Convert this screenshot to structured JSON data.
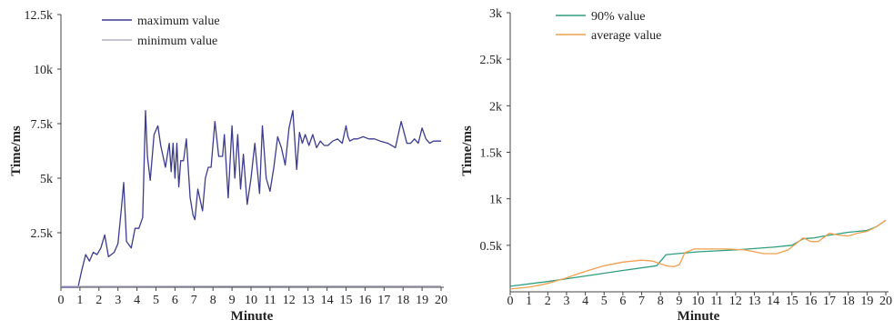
{
  "chart_data": [
    {
      "type": "line",
      "title": "",
      "xlabel": "Minute",
      "ylabel": "Time/ms",
      "xlim": [
        0,
        20
      ],
      "ylim": [
        0,
        12500
      ],
      "x_ticks": [
        "0",
        "1",
        "2",
        "3",
        "4",
        "5",
        "6",
        "7",
        "8",
        "9",
        "10",
        "11",
        "12",
        "13",
        "14",
        "15",
        "16",
        "17",
        "18",
        "19",
        "20"
      ],
      "y_ticks": [
        {
          "value": 2500,
          "label": "2.5k"
        },
        {
          "value": 5000,
          "label": "5k"
        },
        {
          "value": 7500,
          "label": "7.5k"
        },
        {
          "value": 10000,
          "label": "10k"
        },
        {
          "value": 12500,
          "label": "12.5k"
        }
      ],
      "grid": false,
      "legend_position": "top-center",
      "series": [
        {
          "name": "maximum value",
          "color": "#3b3b8f",
          "x": [
            0,
            0.9,
            1.0,
            1.1,
            1.3,
            1.5,
            1.7,
            1.9,
            2.1,
            2.3,
            2.5,
            2.8,
            3.0,
            3.2,
            3.3,
            3.45,
            3.7,
            3.9,
            4.1,
            4.3,
            4.45,
            4.55,
            4.7,
            4.9,
            5.1,
            5.25,
            5.5,
            5.7,
            5.8,
            5.9,
            6.0,
            6.1,
            6.2,
            6.3,
            6.45,
            6.6,
            6.8,
            6.95,
            7.05,
            7.2,
            7.45,
            7.6,
            7.75,
            7.9,
            8.1,
            8.3,
            8.5,
            8.6,
            8.8,
            9.0,
            9.15,
            9.3,
            9.45,
            9.6,
            9.8,
            10.0,
            10.2,
            10.45,
            10.6,
            10.8,
            11.0,
            11.2,
            11.4,
            11.6,
            11.8,
            12.0,
            12.2,
            12.4,
            12.55,
            12.7,
            12.85,
            13.05,
            13.25,
            13.45,
            13.65,
            13.85,
            14.05,
            14.3,
            14.55,
            14.8,
            15.0,
            15.1,
            15.2,
            15.4,
            15.6,
            15.9,
            16.2,
            16.5,
            16.8,
            17.2,
            17.6,
            17.9,
            18.2,
            18.4,
            18.6,
            18.8,
            19.0,
            19.2,
            19.4,
            19.6,
            19.8,
            20.0
          ],
          "y": [
            0,
            0,
            400,
            800,
            1500,
            1200,
            1600,
            1500,
            1800,
            2400,
            1400,
            1600,
            2000,
            3800,
            4800,
            2100,
            1800,
            2700,
            2700,
            3200,
            8100,
            6000,
            4900,
            7000,
            7400,
            6500,
            5500,
            6600,
            5300,
            6600,
            5000,
            6600,
            4600,
            5800,
            5800,
            6800,
            4100,
            3300,
            3100,
            4500,
            3500,
            5000,
            5500,
            5500,
            7600,
            6000,
            6000,
            7000,
            4100,
            7400,
            5000,
            7000,
            4500,
            6100,
            3800,
            5000,
            6600,
            4300,
            7400,
            5000,
            4400,
            5500,
            6900,
            6400,
            5600,
            7300,
            8100,
            5400,
            7100,
            6600,
            7000,
            6500,
            7000,
            6400,
            6700,
            6500,
            6500,
            6700,
            6800,
            6600,
            7400,
            6900,
            6700,
            6800,
            6800,
            6900,
            6800,
            6800,
            6700,
            6600,
            6400,
            7600,
            6600,
            6600,
            6800,
            6600,
            7300,
            6800,
            6600,
            6700,
            6700,
            6700
          ]
        },
        {
          "name": "minimum value",
          "color": "#b0b0c8",
          "x": [
            0,
            20
          ],
          "y": [
            40,
            60
          ]
        }
      ]
    },
    {
      "type": "line",
      "title": "",
      "xlabel": "Minute",
      "ylabel": "Time/ms",
      "xlim": [
        0,
        20
      ],
      "ylim": [
        0,
        3000
      ],
      "x_ticks": [
        "0",
        "1",
        "2",
        "3",
        "4",
        "5",
        "6",
        "7",
        "8",
        "9",
        "10",
        "11",
        "12",
        "13",
        "14",
        "15",
        "16",
        "17",
        "18",
        "19",
        "20"
      ],
      "y_ticks": [
        {
          "value": 500,
          "label": "0.5k"
        },
        {
          "value": 1000,
          "label": "1k"
        },
        {
          "value": 1500,
          "label": "1.5k"
        },
        {
          "value": 2000,
          "label": "2k"
        },
        {
          "value": 2500,
          "label": "2.5k"
        },
        {
          "value": 3000,
          "label": "3k"
        }
      ],
      "grid": false,
      "legend_position": "top-center",
      "series": [
        {
          "name": "90% value",
          "color": "#2e9e7e",
          "x": [
            0,
            2,
            4,
            6,
            7.8,
            8.3,
            10,
            12,
            14,
            15,
            15.6,
            16.2,
            17,
            18,
            19,
            19.5,
            20
          ],
          "y": [
            60,
            110,
            170,
            230,
            280,
            400,
            430,
            450,
            480,
            500,
            570,
            580,
            610,
            640,
            660,
            700,
            770
          ]
        },
        {
          "name": "average value",
          "color": "#f0a050",
          "x": [
            0,
            1,
            2,
            3,
            4,
            5,
            6,
            7,
            7.6,
            8.3,
            8.7,
            9.0,
            9.3,
            9.8,
            10.5,
            11.5,
            12.5,
            13.5,
            14.2,
            14.8,
            15.3,
            15.6,
            16.0,
            16.4,
            17.0,
            17.5,
            18.0,
            18.5,
            19.0,
            19.5,
            20.0
          ],
          "y": [
            30,
            50,
            90,
            150,
            220,
            280,
            320,
            340,
            330,
            280,
            270,
            290,
            420,
            460,
            460,
            460,
            450,
            410,
            410,
            450,
            530,
            580,
            540,
            540,
            630,
            610,
            600,
            630,
            650,
            700,
            770
          ]
        }
      ]
    }
  ]
}
